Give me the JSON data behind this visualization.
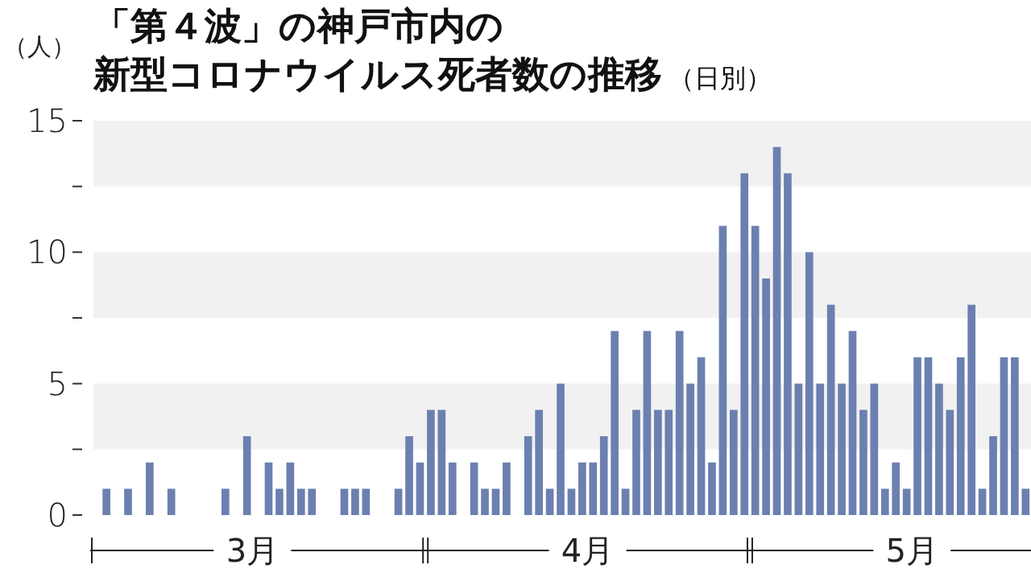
{
  "chart_data": {
    "type": "bar",
    "title": "「第４波」の神戸市内の新型コロナウイルス死者数の推移",
    "subtitle": "（日別）",
    "ylabel": "（人）",
    "x": [
      "--03-01",
      "--03-02",
      "--03-03",
      "--03-04",
      "--03-05",
      "--03-06",
      "--03-07",
      "--03-08",
      "--03-09",
      "--03-10",
      "--03-11",
      "--03-12",
      "--03-13",
      "--03-14",
      "--03-15",
      "--03-16",
      "--03-17",
      "--03-18",
      "--03-19",
      "--03-20",
      "--03-21",
      "--03-22",
      "--03-23",
      "--03-24",
      "--03-25",
      "--03-26",
      "--03-27",
      "--03-28",
      "--03-29",
      "--03-30",
      "--03-31",
      "--04-01",
      "--04-02",
      "--04-03",
      "--04-04",
      "--04-05",
      "--04-06",
      "--04-07",
      "--04-08",
      "--04-09",
      "--04-10",
      "--04-11",
      "--04-12",
      "--04-13",
      "--04-14",
      "--04-15",
      "--04-16",
      "--04-17",
      "--04-18",
      "--04-19",
      "--04-20",
      "--04-21",
      "--04-22",
      "--04-23",
      "--04-24",
      "--04-25",
      "--04-26",
      "--04-27",
      "--04-28",
      "--04-29",
      "--04-30",
      "--05-01",
      "--05-02",
      "--05-03",
      "--05-04",
      "--05-05",
      "--05-06",
      "--05-07",
      "--05-08",
      "--05-09",
      "--05-10",
      "--05-11",
      "--05-12",
      "--05-13",
      "--05-14",
      "--05-15",
      "--05-16",
      "--05-17",
      "--05-18",
      "--05-19",
      "--05-20",
      "--05-21",
      "--05-22",
      "--05-23",
      "--05-24",
      "--05-25",
      "--05-26"
    ],
    "values": [
      0,
      1,
      0,
      1,
      0,
      2,
      0,
      1,
      0,
      0,
      0,
      0,
      1,
      0,
      3,
      0,
      2,
      1,
      2,
      1,
      1,
      0,
      0,
      1,
      1,
      1,
      0,
      0,
      1,
      3,
      2,
      4,
      4,
      2,
      0,
      2,
      1,
      1,
      2,
      0,
      3,
      4,
      1,
      5,
      1,
      2,
      2,
      3,
      7,
      1,
      4,
      7,
      4,
      4,
      7,
      5,
      6,
      2,
      11,
      4,
      13,
      11,
      9,
      14,
      13,
      5,
      10,
      5,
      8,
      5,
      7,
      4,
      5,
      1,
      2,
      1,
      6,
      6,
      5,
      4,
      6,
      8,
      1,
      3,
      6,
      6,
      1
    ],
    "color": "#6b80b0",
    "xlim": [
      "--03-01",
      "--05-27"
    ],
    "xticks": [
      {
        "value": "--03-16",
        "label": "3月"
      },
      {
        "value": "--04-16",
        "label": "4月"
      },
      {
        "value": "--05-16",
        "label": "5月"
      }
    ],
    "ylim": [
      0,
      15
    ],
    "yticks": [
      0,
      {
        "value": 2.5,
        "label": null
      },
      5,
      {
        "value": 7.5,
        "label": null
      },
      10,
      {
        "value": 12.5,
        "label": null
      },
      15
    ],
    "bands": [
      {
        "axis": "y",
        "from": 12.5,
        "to": 15,
        "color": "#f1f1f1"
      },
      {
        "axis": "y",
        "from": 7.5,
        "to": 10,
        "color": "#f1f1f1"
      },
      {
        "axis": "y",
        "from": 2.5,
        "to": 5,
        "color": "#f1f1f1"
      }
    ]
  }
}
